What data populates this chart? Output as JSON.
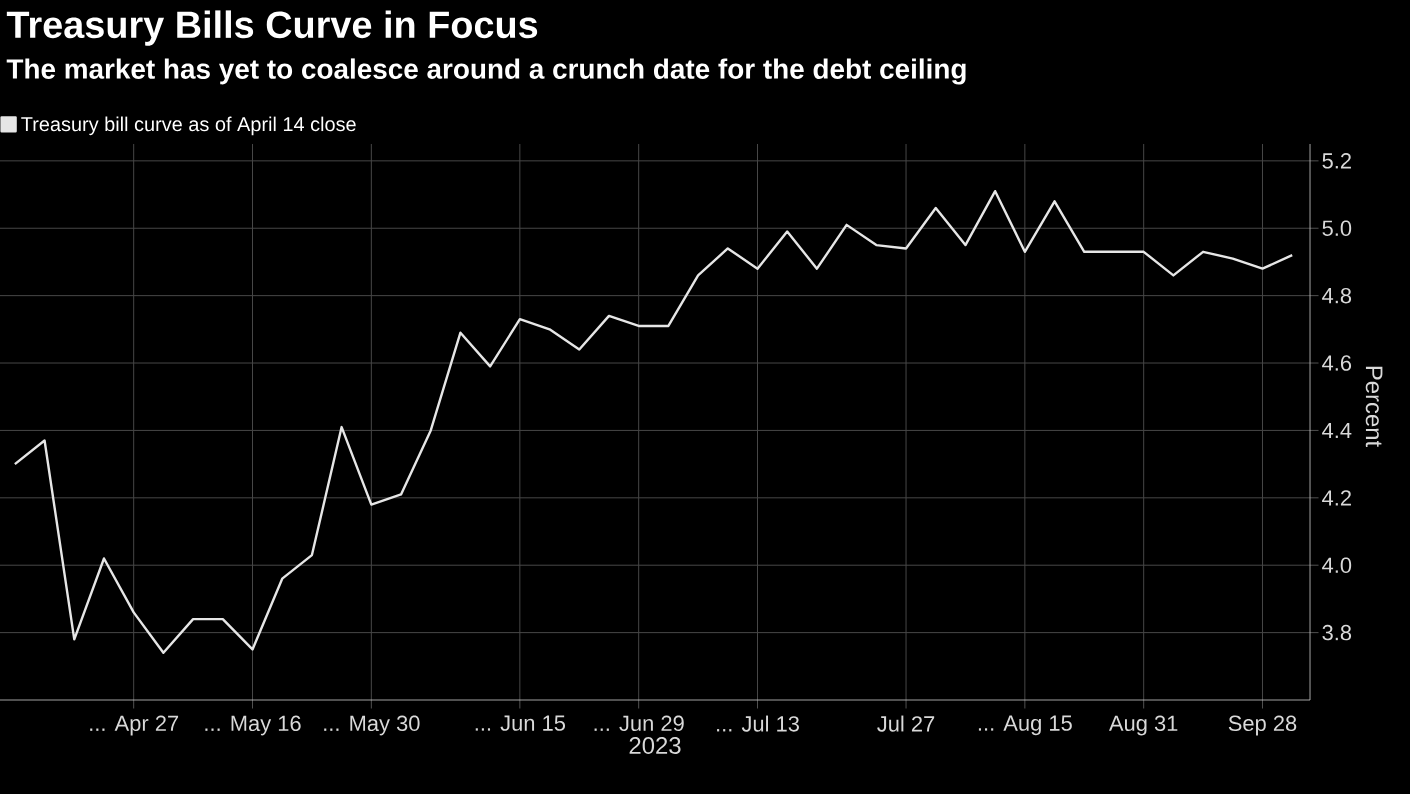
{
  "chart_data": {
    "type": "line",
    "title": "Treasury Bills Curve in Focus",
    "subtitle": "The market has yet to coalesce around a crunch date for the debt ceiling",
    "xlabel": "2023",
    "ylabel": "Percent",
    "categories": [
      null,
      null,
      null,
      null,
      "... Apr 27",
      null,
      null,
      null,
      "... May 16",
      null,
      null,
      null,
      "... May 30",
      null,
      null,
      null,
      null,
      "... Jun 15",
      null,
      null,
      null,
      "... Jun 29",
      null,
      null,
      null,
      "... Jul 13",
      null,
      null,
      null,
      null,
      "Jul 27",
      null,
      null,
      null,
      "... Aug 15",
      null,
      null,
      null,
      "Aug 31",
      null,
      null,
      null,
      "Sep 28",
      null
    ],
    "series": [
      {
        "name": "Treasury bill curve as of April 14 close",
        "color": "#e6e6e6",
        "values": [
          4.3,
          4.37,
          3.78,
          4.02,
          3.86,
          3.74,
          3.84,
          3.84,
          3.75,
          3.96,
          4.03,
          4.41,
          4.18,
          4.21,
          4.4,
          4.69,
          4.59,
          4.73,
          4.7,
          4.64,
          4.74,
          4.71,
          4.71,
          4.86,
          4.94,
          4.88,
          4.99,
          4.88,
          5.01,
          4.95,
          4.94,
          5.06,
          4.95,
          5.11,
          4.93,
          5.08,
          4.93,
          4.93,
          4.93,
          4.86,
          4.93,
          4.91,
          4.88,
          4.92
        ]
      }
    ],
    "ylim": [
      3.6,
      5.25
    ],
    "yticks": [
      3.8,
      {
        "value": 4.0,
        "label": "4.0"
      },
      4.2,
      4.4,
      4.6,
      4.8,
      {
        "value": 5.0,
        "label": "5.0"
      },
      5.2
    ],
    "grid": true,
    "legend": "top left",
    "marker": "none",
    "line_style": "solid"
  }
}
